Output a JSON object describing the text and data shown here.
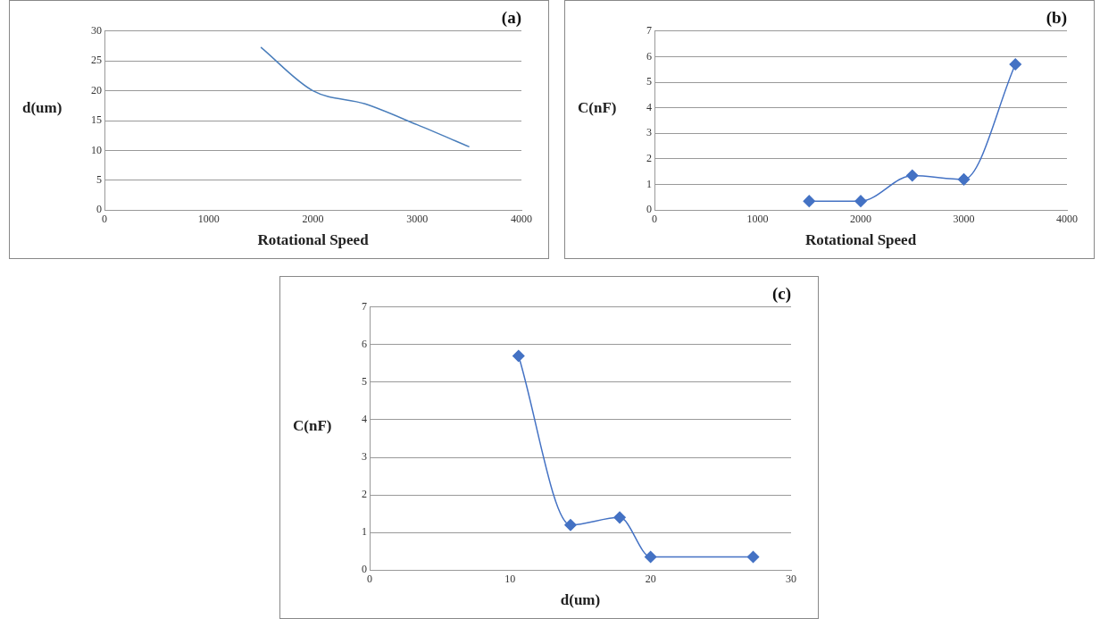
{
  "chart_data": [
    {
      "type": "line",
      "title": "(a)",
      "xlabel": "Rotational Speed",
      "ylabel": "d(um)",
      "x": [
        1500,
        2000,
        2500,
        3000,
        3500
      ],
      "series": [
        {
          "color": "#4a7ebb",
          "values": [
            27.3,
            20,
            17.8,
            14.3,
            10.6
          ]
        }
      ],
      "xlim": [
        0,
        4000
      ],
      "xticks": [
        0,
        1000,
        2000,
        3000,
        4000
      ],
      "ylim": [
        0,
        30
      ],
      "yticks": [
        0,
        5,
        10,
        15,
        20,
        25,
        30
      ],
      "grid": "y",
      "legend": false,
      "marker": "none"
    },
    {
      "type": "line",
      "title": "(b)",
      "xlabel": "Rotational Speed",
      "ylabel": "C(nF)",
      "x": [
        1500,
        2000,
        2500,
        3000,
        3500
      ],
      "series": [
        {
          "color": "#4472c4",
          "values": [
            0.35,
            0.35,
            1.35,
            1.2,
            5.7
          ]
        }
      ],
      "xlim": [
        0,
        4000
      ],
      "xticks": [
        0,
        1000,
        2000,
        3000,
        4000
      ],
      "ylim": [
        0,
        7
      ],
      "yticks": [
        0,
        1,
        2,
        3,
        4,
        5,
        6,
        7
      ],
      "grid": "y",
      "legend": false,
      "marker": "diamond"
    },
    {
      "type": "line",
      "title": "(c)",
      "xlabel": "d(um)",
      "ylabel": "C(nF)",
      "x": [
        10.6,
        14.3,
        17.8,
        20,
        27.3
      ],
      "series": [
        {
          "color": "#4472c4",
          "values": [
            5.7,
            1.2,
            1.4,
            0.35,
            0.35
          ]
        }
      ],
      "xlim": [
        0,
        30
      ],
      "xticks": [
        0,
        10,
        20,
        30
      ],
      "ylim": [
        0,
        7
      ],
      "yticks": [
        0,
        1,
        2,
        3,
        4,
        5,
        6,
        7
      ],
      "grid": "y",
      "legend": false,
      "marker": "diamond"
    }
  ]
}
